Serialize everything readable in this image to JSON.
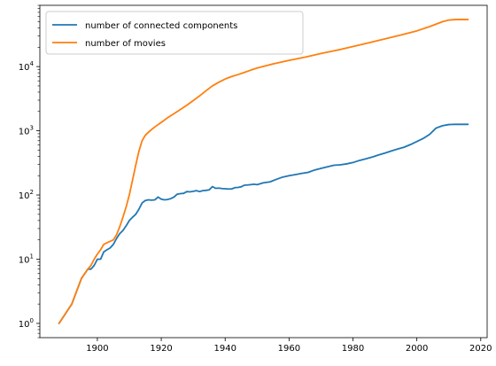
{
  "chart_data": {
    "type": "line",
    "title": "",
    "xlabel": "",
    "ylabel": "",
    "xlim": [
      1882,
      2022
    ],
    "ylim": [
      0.6,
      90000
    ],
    "yscale": "log",
    "grid": false,
    "legend_position": "upper-left",
    "x_ticks": [
      1900,
      1920,
      1940,
      1960,
      1980,
      2000,
      2020
    ],
    "x_tick_labels": [
      "1900",
      "1920",
      "1940",
      "1960",
      "1980",
      "2000",
      "2020"
    ],
    "y_ticks": [
      1,
      10,
      100,
      1000,
      10000
    ],
    "y_tick_labels": [
      {
        "base": "10",
        "exp": "0"
      },
      {
        "base": "10",
        "exp": "1"
      },
      {
        "base": "10",
        "exp": "2"
      },
      {
        "base": "10",
        "exp": "3"
      },
      {
        "base": "10",
        "exp": "4"
      }
    ],
    "series": [
      {
        "name": "number of connected components",
        "color": "#1f77b4",
        "x": [
          1888,
          1892,
          1895,
          1897,
          1898,
          1899,
          1900,
          1901,
          1902,
          1903,
          1904,
          1905,
          1906,
          1907,
          1908,
          1909,
          1910,
          1911,
          1912,
          1913,
          1914,
          1915,
          1916,
          1917,
          1918,
          1919,
          1920,
          1921,
          1922,
          1923,
          1924,
          1925,
          1926,
          1927,
          1928,
          1929,
          1930,
          1931,
          1932,
          1933,
          1934,
          1935,
          1936,
          1937,
          1938,
          1939,
          1940,
          1941,
          1942,
          1943,
          1944,
          1945,
          1946,
          1947,
          1948,
          1949,
          1950,
          1952,
          1954,
          1956,
          1958,
          1960,
          1962,
          1964,
          1966,
          1968,
          1970,
          1972,
          1974,
          1976,
          1978,
          1980,
          1982,
          1984,
          1986,
          1988,
          1990,
          1992,
          1994,
          1996,
          1998,
          2000,
          2002,
          2004,
          2006,
          2008,
          2010,
          2012,
          2014,
          2016
        ],
        "y": [
          1,
          2,
          5,
          7,
          7,
          8,
          10,
          10,
          13,
          14,
          15,
          17,
          21,
          25,
          28,
          33,
          40,
          45,
          50,
          60,
          75,
          82,
          84,
          83,
          84,
          93,
          86,
          84,
          85,
          88,
          93,
          103,
          105,
          106,
          113,
          112,
          114,
          117,
          113,
          117,
          118,
          120,
          135,
          127,
          128,
          126,
          125,
          124,
          124,
          130,
          131,
          134,
          142,
          143,
          145,
          147,
          145,
          155,
          160,
          175,
          190,
          200,
          208,
          217,
          225,
          245,
          260,
          275,
          290,
          295,
          305,
          320,
          345,
          365,
          390,
          420,
          450,
          485,
          520,
          555,
          610,
          680,
          760,
          880,
          1100,
          1200,
          1250,
          1260,
          1260,
          1260
        ]
      },
      {
        "name": "number of movies",
        "color": "#ff7f0e",
        "x": [
          1888,
          1892,
          1895,
          1897,
          1898,
          1899,
          1900,
          1901,
          1902,
          1903,
          1904,
          1905,
          1906,
          1907,
          1908,
          1909,
          1910,
          1911,
          1912,
          1913,
          1914,
          1915,
          1916,
          1917,
          1918,
          1920,
          1922,
          1924,
          1926,
          1928,
          1930,
          1932,
          1934,
          1936,
          1938,
          1940,
          1942,
          1944,
          1946,
          1948,
          1950,
          1955,
          1960,
          1965,
          1970,
          1975,
          1980,
          1985,
          1990,
          1995,
          2000,
          2004,
          2008,
          2010,
          2012,
          2014,
          2016
        ],
        "y": [
          1,
          2,
          5,
          7,
          8,
          10,
          12,
          14,
          17,
          18,
          19,
          20,
          24,
          32,
          45,
          65,
          100,
          170,
          290,
          480,
          700,
          850,
          950,
          1050,
          1150,
          1350,
          1600,
          1850,
          2150,
          2500,
          2950,
          3500,
          4200,
          5000,
          5700,
          6400,
          7000,
          7500,
          8100,
          8800,
          9500,
          11000,
          12500,
          14000,
          16000,
          18000,
          20500,
          23500,
          27000,
          31000,
          36000,
          42000,
          50000,
          53000,
          54000,
          54000,
          54000
        ]
      }
    ]
  }
}
